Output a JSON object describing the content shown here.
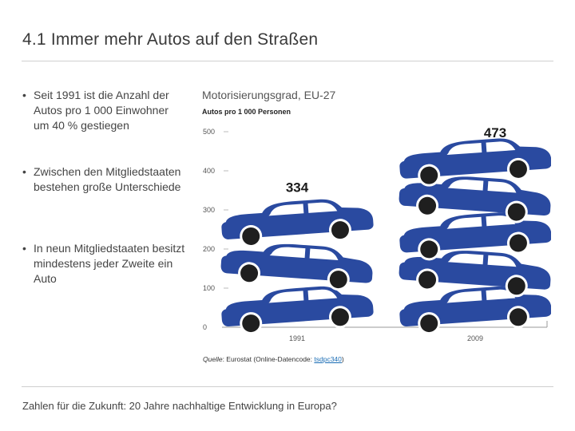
{
  "slide": {
    "title": "4.1 Immer mehr Autos auf den Straßen",
    "bullets": [
      "Seit 1991 ist die Anzahl der Autos pro 1 000 Einwohner um 40 % gestiegen",
      "Zwischen den Mitgliedstaaten bestehen große Unterschiede",
      "In neun Mitgliedstaaten besitzt mindestens jeder Zweite ein Auto"
    ],
    "bullet_glyph": "•",
    "footer": "Zahlen für die Zukunft: 20 Jahre nachhaltige Entwicklung in Europa?"
  },
  "source": {
    "label": "Quelle",
    "text": ": Eurostat (Online-Datencode: ",
    "code": "tsdpc340",
    "close": ")"
  },
  "chart_data": {
    "type": "bar",
    "title": "Motorisierungsgrad, EU-27",
    "subtitle": "Autos pro 1 000 Personen",
    "categories": [
      "1991",
      "2009"
    ],
    "values": [
      334,
      473
    ],
    "value_labels": [
      "334",
      "473"
    ],
    "ylim": [
      0,
      500
    ],
    "yticks": [
      0,
      100,
      200,
      300,
      400,
      500
    ],
    "grid": false,
    "bar_style": "stacked car pictograms",
    "bar_color": "#2a4aa0",
    "icon": "car-icon"
  }
}
